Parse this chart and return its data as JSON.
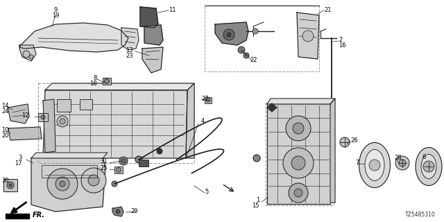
{
  "diagram_code": "TZ5485310",
  "background_color": "#ffffff",
  "line_color": "#1a1a1a",
  "dashed_color": "#999999",
  "label_fontsize": 6.0,
  "diagram_code_fontsize": 5.5,
  "figsize": [
    6.4,
    3.2
  ],
  "dpi": 100
}
